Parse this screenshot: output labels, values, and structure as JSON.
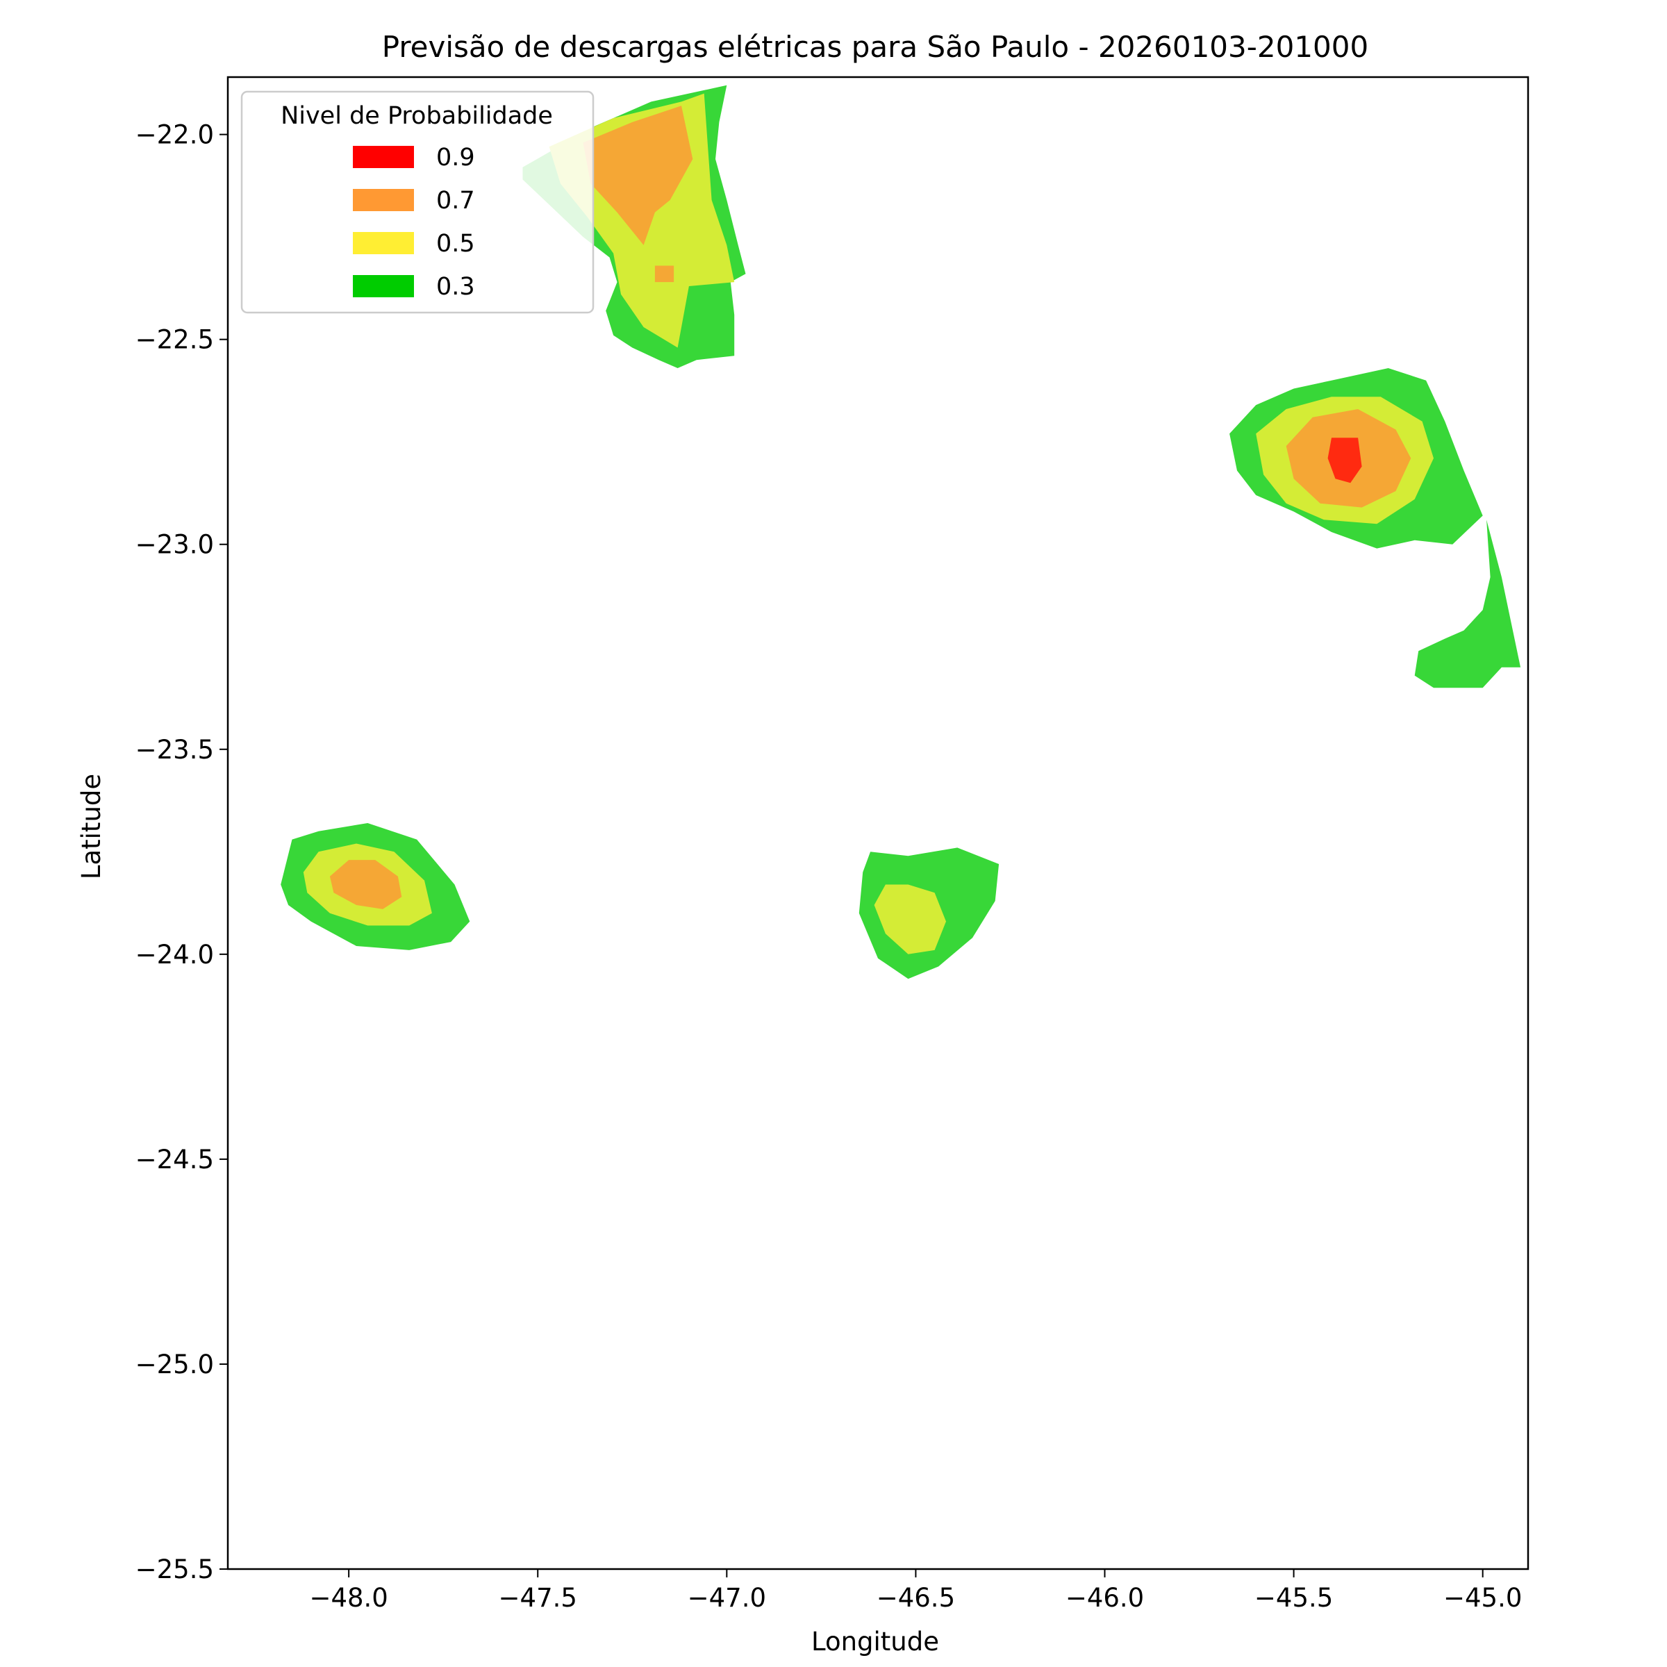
{
  "chart_data": {
    "type": "filled-contour-map",
    "title": "Previsão de descargas elétricas para São Paulo - 20260103-201000",
    "xlabel": "Longitude",
    "ylabel": "Latitude",
    "xlim": [
      -48.32,
      -44.88
    ],
    "ylim": [
      -25.5,
      -21.86
    ],
    "xticks": [
      -48.0,
      -47.5,
      -47.0,
      -46.5,
      -46.0,
      -45.5,
      -45.0
    ],
    "xtick_labels": [
      "−48.0",
      "−47.5",
      "−47.0",
      "−46.5",
      "−46.0",
      "−45.5",
      "−45.0"
    ],
    "yticks": [
      -22.0,
      -22.5,
      -23.0,
      -23.5,
      -24.0,
      -24.5,
      -25.0,
      -25.5
    ],
    "ytick_labels": [
      "−22.0",
      "−22.5",
      "−23.0",
      "−23.5",
      "−24.0",
      "−24.5",
      "−25.0",
      "−25.5"
    ],
    "grid": false,
    "legend": {
      "title": "Nivel de Probabilidade",
      "placement": "top-left",
      "entries": [
        {
          "label": "0.9",
          "color": "#ff0000"
        },
        {
          "label": "0.7",
          "color": "#ff9933"
        },
        {
          "label": "0.5",
          "color": "#ffee33"
        },
        {
          "label": "0.3",
          "color": "#00cc00"
        }
      ]
    },
    "level_fill_colors": {
      "0.3": "#38d738",
      "0.5": "#d4ec36",
      "0.7": "#f5a735",
      "0.9": "#ff2a10"
    },
    "cells": [
      {
        "name": "cell-north",
        "levels": [
          {
            "level": "0.3",
            "polygon": [
              [
                -47.54,
                -22.08
              ],
              [
                -47.35,
                -21.98
              ],
              [
                -47.2,
                -21.92
              ],
              [
                -47.05,
                -21.89
              ],
              [
                -47.0,
                -21.88
              ],
              [
                -47.02,
                -21.97
              ],
              [
                -47.03,
                -22.06
              ],
              [
                -47.0,
                -22.16
              ],
              [
                -46.97,
                -22.27
              ],
              [
                -46.95,
                -22.34
              ],
              [
                -46.99,
                -22.36
              ],
              [
                -46.98,
                -22.44
              ],
              [
                -46.98,
                -22.54
              ],
              [
                -47.08,
                -22.55
              ],
              [
                -47.13,
                -22.57
              ],
              [
                -47.18,
                -22.55
              ],
              [
                -47.25,
                -22.52
              ],
              [
                -47.3,
                -22.49
              ],
              [
                -47.32,
                -22.43
              ],
              [
                -47.29,
                -22.36
              ],
              [
                -47.31,
                -22.3
              ],
              [
                -47.38,
                -22.25
              ],
              [
                -47.46,
                -22.18
              ],
              [
                -47.54,
                -22.11
              ]
            ]
          },
          {
            "level": "0.5",
            "polygon": [
              [
                -47.47,
                -22.03
              ],
              [
                -47.3,
                -21.96
              ],
              [
                -47.12,
                -21.92
              ],
              [
                -47.06,
                -21.9
              ],
              [
                -47.05,
                -22.03
              ],
              [
                -47.04,
                -22.16
              ],
              [
                -47.0,
                -22.27
              ],
              [
                -46.98,
                -22.36
              ],
              [
                -47.1,
                -22.37
              ],
              [
                -47.13,
                -22.52
              ],
              [
                -47.22,
                -22.47
              ],
              [
                -47.28,
                -22.39
              ],
              [
                -47.3,
                -22.29
              ],
              [
                -47.37,
                -22.2
              ],
              [
                -47.44,
                -22.12
              ]
            ]
          },
          {
            "level": "0.7",
            "polygon": [
              [
                -47.38,
                -22.02
              ],
              [
                -47.25,
                -21.97
              ],
              [
                -47.12,
                -21.93
              ],
              [
                -47.09,
                -22.06
              ],
              [
                -47.15,
                -22.16
              ],
              [
                -47.19,
                -22.19
              ],
              [
                -47.22,
                -22.27
              ],
              [
                -47.29,
                -22.19
              ],
              [
                -47.36,
                -22.12
              ]
            ]
          },
          {
            "level": "0.7",
            "polygon": [
              [
                -47.19,
                -22.32
              ],
              [
                -47.14,
                -22.32
              ],
              [
                -47.14,
                -22.36
              ],
              [
                -47.19,
                -22.36
              ]
            ]
          }
        ]
      },
      {
        "name": "cell-east",
        "levels": [
          {
            "level": "0.3",
            "polygon": [
              [
                -45.67,
                -22.73
              ],
              [
                -45.6,
                -22.66
              ],
              [
                -45.5,
                -22.62
              ],
              [
                -45.4,
                -22.6
              ],
              [
                -45.25,
                -22.57
              ],
              [
                -45.15,
                -22.6
              ],
              [
                -45.1,
                -22.7
              ],
              [
                -45.05,
                -22.82
              ],
              [
                -45.0,
                -22.93
              ],
              [
                -45.08,
                -23.0
              ],
              [
                -45.18,
                -22.99
              ],
              [
                -45.28,
                -23.01
              ],
              [
                -45.4,
                -22.97
              ],
              [
                -45.5,
                -22.92
              ],
              [
                -45.6,
                -22.88
              ],
              [
                -45.65,
                -22.82
              ]
            ]
          },
          {
            "level": "0.5",
            "polygon": [
              [
                -45.6,
                -22.73
              ],
              [
                -45.52,
                -22.67
              ],
              [
                -45.4,
                -22.64
              ],
              [
                -45.27,
                -22.64
              ],
              [
                -45.16,
                -22.7
              ],
              [
                -45.13,
                -22.79
              ],
              [
                -45.18,
                -22.89
              ],
              [
                -45.28,
                -22.95
              ],
              [
                -45.42,
                -22.94
              ],
              [
                -45.52,
                -22.9
              ],
              [
                -45.58,
                -22.83
              ]
            ]
          },
          {
            "level": "0.7",
            "polygon": [
              [
                -45.52,
                -22.76
              ],
              [
                -45.45,
                -22.69
              ],
              [
                -45.33,
                -22.67
              ],
              [
                -45.23,
                -22.72
              ],
              [
                -45.19,
                -22.79
              ],
              [
                -45.23,
                -22.87
              ],
              [
                -45.32,
                -22.91
              ],
              [
                -45.43,
                -22.9
              ],
              [
                -45.5,
                -22.84
              ]
            ]
          },
          {
            "level": "0.9",
            "polygon": [
              [
                -45.4,
                -22.74
              ],
              [
                -45.33,
                -22.74
              ],
              [
                -45.32,
                -22.81
              ],
              [
                -45.35,
                -22.85
              ],
              [
                -45.39,
                -22.84
              ],
              [
                -45.41,
                -22.79
              ]
            ]
          }
        ]
      },
      {
        "name": "cell-east-tail",
        "levels": [
          {
            "level": "0.3",
            "polygon": [
              [
                -44.99,
                -22.94
              ],
              [
                -44.95,
                -23.08
              ],
              [
                -44.9,
                -23.3
              ],
              [
                -44.95,
                -23.3
              ],
              [
                -45.0,
                -23.35
              ],
              [
                -45.13,
                -23.35
              ],
              [
                -45.18,
                -23.32
              ],
              [
                -45.17,
                -23.26
              ],
              [
                -45.1,
                -23.23
              ],
              [
                -45.05,
                -23.21
              ],
              [
                -45.0,
                -23.16
              ],
              [
                -44.98,
                -23.08
              ]
            ]
          }
        ]
      },
      {
        "name": "cell-southwest",
        "levels": [
          {
            "level": "0.3",
            "polygon": [
              [
                -48.18,
                -23.83
              ],
              [
                -48.15,
                -23.72
              ],
              [
                -48.08,
                -23.7
              ],
              [
                -47.95,
                -23.68
              ],
              [
                -47.82,
                -23.72
              ],
              [
                -47.72,
                -23.83
              ],
              [
                -47.68,
                -23.92
              ],
              [
                -47.73,
                -23.97
              ],
              [
                -47.84,
                -23.99
              ],
              [
                -47.98,
                -23.98
              ],
              [
                -48.1,
                -23.92
              ],
              [
                -48.16,
                -23.88
              ]
            ]
          },
          {
            "level": "0.5",
            "polygon": [
              [
                -48.12,
                -23.8
              ],
              [
                -48.08,
                -23.75
              ],
              [
                -47.98,
                -23.73
              ],
              [
                -47.88,
                -23.75
              ],
              [
                -47.8,
                -23.82
              ],
              [
                -47.78,
                -23.9
              ],
              [
                -47.84,
                -23.93
              ],
              [
                -47.95,
                -23.93
              ],
              [
                -48.05,
                -23.9
              ],
              [
                -48.11,
                -23.85
              ]
            ]
          },
          {
            "level": "0.7",
            "polygon": [
              [
                -48.05,
                -23.81
              ],
              [
                -48.0,
                -23.77
              ],
              [
                -47.93,
                -23.77
              ],
              [
                -47.87,
                -23.81
              ],
              [
                -47.86,
                -23.86
              ],
              [
                -47.91,
                -23.89
              ],
              [
                -47.98,
                -23.88
              ],
              [
                -48.04,
                -23.85
              ]
            ]
          }
        ]
      },
      {
        "name": "cell-central",
        "levels": [
          {
            "level": "0.3",
            "polygon": [
              [
                -46.62,
                -23.75
              ],
              [
                -46.52,
                -23.76
              ],
              [
                -46.39,
                -23.74
              ],
              [
                -46.28,
                -23.78
              ],
              [
                -46.29,
                -23.87
              ],
              [
                -46.35,
                -23.96
              ],
              [
                -46.44,
                -24.03
              ],
              [
                -46.52,
                -24.06
              ],
              [
                -46.6,
                -24.01
              ],
              [
                -46.65,
                -23.9
              ],
              [
                -46.64,
                -23.8
              ]
            ]
          },
          {
            "level": "0.5",
            "polygon": [
              [
                -46.58,
                -23.83
              ],
              [
                -46.52,
                -23.83
              ],
              [
                -46.45,
                -23.85
              ],
              [
                -46.42,
                -23.92
              ],
              [
                -46.45,
                -23.99
              ],
              [
                -46.52,
                -24.0
              ],
              [
                -46.58,
                -23.95
              ],
              [
                -46.61,
                -23.88
              ]
            ]
          }
        ]
      }
    ]
  }
}
